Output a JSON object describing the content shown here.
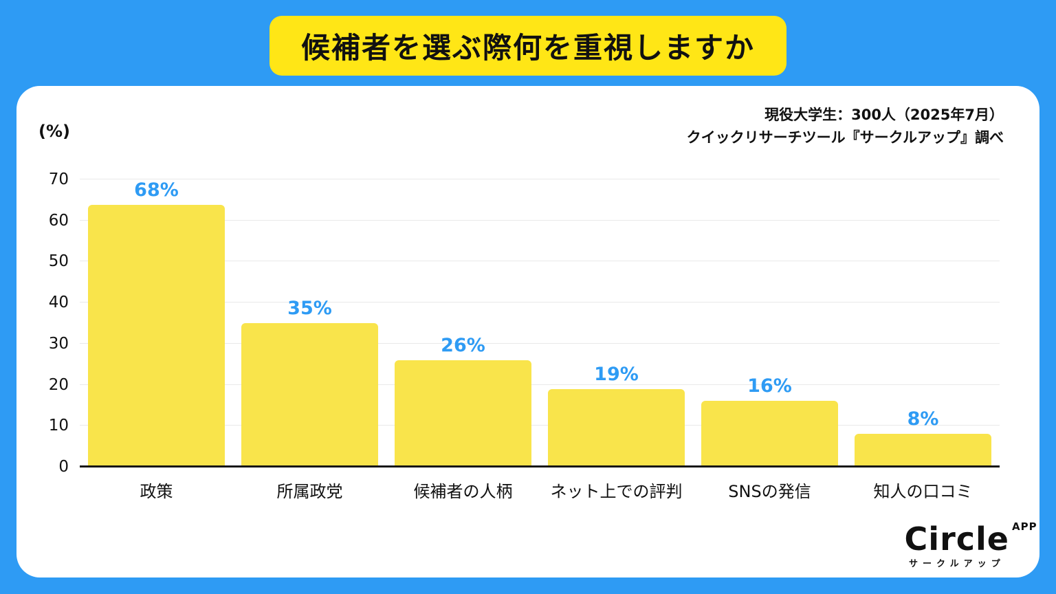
{
  "page": {
    "title": "候補者を選ぶ際何を重視しますか"
  },
  "card": {
    "source_line1": "現役大学生：300人（2025年7月）",
    "source_line2": "クイックリサーチツール『サークルアップ』調べ"
  },
  "chart_data": {
    "type": "bar",
    "title": "候補者を選ぶ際何を重視しますか",
    "categories": [
      "政策",
      "所属政党",
      "候補者の人柄",
      "ネット上での評判",
      "SNSの発信",
      "知人の口コミ"
    ],
    "values": [
      68,
      35,
      26,
      19,
      16,
      8
    ],
    "value_labels": [
      "68%",
      "35%",
      "26%",
      "19%",
      "16%",
      "8%"
    ],
    "xlabel": "",
    "ylabel": "(%)",
    "ylim": [
      0,
      70
    ],
    "yticks": [
      0,
      10,
      20,
      30,
      40,
      50,
      60,
      70
    ],
    "grid": true,
    "legend": false,
    "bar_color": "#F9E44B",
    "value_label_color": "#2E9BF4"
  },
  "logo": {
    "name": "Circle",
    "superscript": "APP",
    "subtext": "サークルアップ"
  },
  "colors": {
    "background_blue": "#2E9BF4",
    "banner_yellow": "#FFE616",
    "card_white": "#FFFFFF",
    "text_black": "#111111",
    "gridline_gray": "#E9E9E9"
  }
}
